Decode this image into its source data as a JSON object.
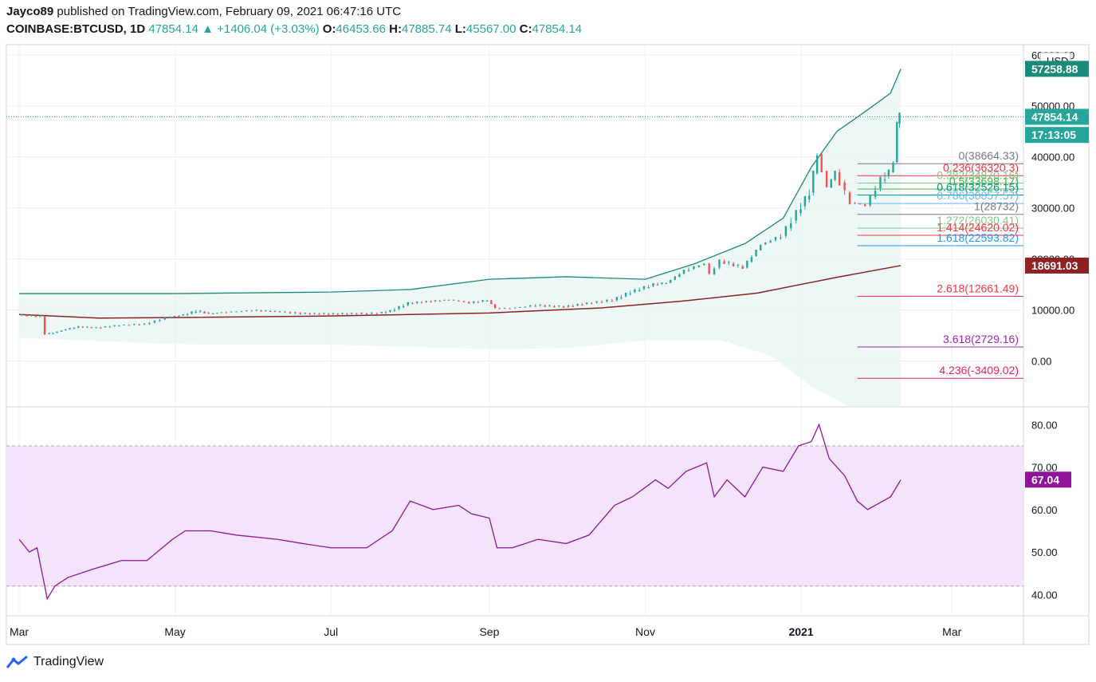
{
  "header": {
    "author": "Jayco89",
    "published_text": "published on TradingView.com, February 09, 2021 06:47:16 UTC",
    "symbol": "COINBASE:BTCUSD, 1D",
    "last": "47854.14",
    "change": "+1406.04 (+3.03%)",
    "o_label": "O:",
    "o_value": "46453.66",
    "h_label": "H:",
    "h_value": "47885.74",
    "l_label": "L:",
    "l_value": "45567.00",
    "c_label": "C:",
    "c_value": "47854.14"
  },
  "brand": {
    "name": "TradingView"
  },
  "colors": {
    "up": "#26a69a",
    "down": "#ef5350",
    "band": "#1b8a79",
    "ma": "#8b2323",
    "rsi": "#8e1599",
    "rsi_bg": "#f3e3fb",
    "grid": "#eef0f3"
  },
  "chart_data": [
    {
      "type": "candlestick",
      "currency_label": "USD",
      "x_labels": [
        "Mar",
        "May",
        "Jul",
        "Sep",
        "Nov",
        "2021",
        "Mar"
      ],
      "y_ticks": [
        "0.00",
        "10000.00",
        "20000.00",
        "30000.00",
        "40000.00",
        "50000.00",
        "60000.00"
      ],
      "ylim": [
        -9000,
        62000
      ],
      "price_series": [
        [
          "2020-03-01",
          9000
        ],
        [
          "2020-03-05",
          8900
        ],
        [
          "2020-03-10",
          8700
        ],
        [
          "2020-03-12",
          5300
        ],
        [
          "2020-03-15",
          5500
        ],
        [
          "2020-03-20",
          6200
        ],
        [
          "2020-03-25",
          6700
        ],
        [
          "2020-04-01",
          6500
        ],
        [
          "2020-04-10",
          7000
        ],
        [
          "2020-04-20",
          7200
        ],
        [
          "2020-04-30",
          8700
        ],
        [
          "2020-05-05",
          9000
        ],
        [
          "2020-05-10",
          9800
        ],
        [
          "2020-05-15",
          9300
        ],
        [
          "2020-05-20",
          9500
        ],
        [
          "2020-06-01",
          9900
        ],
        [
          "2020-06-10",
          9700
        ],
        [
          "2020-06-20",
          9300
        ],
        [
          "2020-07-01",
          9200
        ],
        [
          "2020-07-10",
          9250
        ],
        [
          "2020-07-20",
          9350
        ],
        [
          "2020-07-25",
          9800
        ],
        [
          "2020-08-01",
          11300
        ],
        [
          "2020-08-10",
          11700
        ],
        [
          "2020-08-17",
          12000
        ],
        [
          "2020-08-25",
          11400
        ],
        [
          "2020-09-01",
          11900
        ],
        [
          "2020-09-04",
          10300
        ],
        [
          "2020-09-10",
          10300
        ],
        [
          "2020-09-20",
          10900
        ],
        [
          "2020-10-01",
          10600
        ],
        [
          "2020-10-10",
          11300
        ],
        [
          "2020-10-20",
          11900
        ],
        [
          "2020-10-27",
          13500
        ],
        [
          "2020-11-05",
          15000
        ],
        [
          "2020-11-10",
          15300
        ],
        [
          "2020-11-17",
          17700
        ],
        [
          "2020-11-25",
          19100
        ],
        [
          "2020-11-27",
          17000
        ],
        [
          "2020-12-01",
          19600
        ],
        [
          "2020-12-10",
          18300
        ],
        [
          "2020-12-17",
          22800
        ],
        [
          "2020-12-25",
          24500
        ],
        [
          "2020-12-31",
          29000
        ],
        [
          "2021-01-05",
          33000
        ],
        [
          "2021-01-08",
          40500
        ],
        [
          "2021-01-12",
          34000
        ],
        [
          "2021-01-15",
          37000
        ],
        [
          "2021-01-21",
          31000
        ],
        [
          "2021-01-27",
          30500
        ],
        [
          "2021-02-02",
          35500
        ],
        [
          "2021-02-05",
          37000
        ],
        [
          "2021-02-07",
          39000
        ],
        [
          "2021-02-08",
          46500
        ],
        [
          "2021-02-09",
          47854
        ]
      ],
      "upper_band": [
        [
          "2020-03-01",
          13200
        ],
        [
          "2020-05-01",
          13200
        ],
        [
          "2020-07-01",
          13500
        ],
        [
          "2020-08-01",
          14000
        ],
        [
          "2020-09-01",
          16000
        ],
        [
          "2020-10-01",
          16500
        ],
        [
          "2020-11-01",
          16000
        ],
        [
          "2020-11-20",
          19000
        ],
        [
          "2020-12-10",
          23000
        ],
        [
          "2020-12-25",
          28000
        ],
        [
          "2021-01-05",
          38000
        ],
        [
          "2021-01-15",
          45000
        ],
        [
          "2021-01-25",
          48500
        ],
        [
          "2021-02-05",
          52500
        ],
        [
          "2021-02-09",
          57258
        ]
      ],
      "lower_band": [
        [
          "2020-03-01",
          4500
        ],
        [
          "2020-05-01",
          3300
        ],
        [
          "2020-07-01",
          3200
        ],
        [
          "2020-09-01",
          2300
        ],
        [
          "2020-10-01",
          2500
        ],
        [
          "2020-11-01",
          4000
        ],
        [
          "2020-12-01",
          4000
        ],
        [
          "2020-12-20",
          1000
        ],
        [
          "2021-01-05",
          -5000
        ],
        [
          "2021-01-20",
          -9000
        ],
        [
          "2021-02-09",
          -9000
        ]
      ],
      "moving_average": [
        [
          "2020-03-01",
          9100
        ],
        [
          "2020-04-01",
          8400
        ],
        [
          "2020-05-01",
          8500
        ],
        [
          "2020-07-01",
          8800
        ],
        [
          "2020-09-01",
          9400
        ],
        [
          "2020-10-15",
          10400
        ],
        [
          "2020-11-15",
          11700
        ],
        [
          "2020-12-15",
          13300
        ],
        [
          "2021-01-15",
          16400
        ],
        [
          "2021-02-09",
          18691
        ]
      ],
      "price_labels": [
        {
          "text": "57258.88",
          "color": "#1b8a79",
          "value": 57258.88
        },
        {
          "text": "47854.14",
          "color": "#26a69a",
          "value": 47854.14
        },
        {
          "text": "17:13:05",
          "color": "#26a69a",
          "value": 44300
        },
        {
          "text": "18691.03",
          "color": "#8b2323",
          "value": 18691.03
        }
      ],
      "fibonacci": [
        {
          "text": "0(38664.33)",
          "value": 38664.33,
          "color": "#787b86"
        },
        {
          "text": "0.236(36320.3)",
          "value": 36320.3,
          "color": "#f23645"
        },
        {
          "text": "0.382(34870.16)",
          "value": 34870.16,
          "color": "#81c784"
        },
        {
          "text": "0.5(33698.17)",
          "value": 33698.17,
          "color": "#4caf50"
        },
        {
          "text": "0.618(32526.15)",
          "value": 32526.15,
          "color": "#089981"
        },
        {
          "text": "0.786(30857.57)",
          "value": 30857.57,
          "color": "#64b5f6"
        },
        {
          "text": "1(28732)",
          "value": 28732,
          "color": "#787b86"
        },
        {
          "text": "1.272(26030.41)",
          "value": 26030.41,
          "color": "#81c784"
        },
        {
          "text": "1.414(24620.02)",
          "value": 24620.02,
          "color": "#f23645"
        },
        {
          "text": "1.618(22593.82)",
          "value": 22593.82,
          "color": "#2196f3"
        },
        {
          "text": "2.618(12661.49)",
          "value": 12661.49,
          "color": "#f23645"
        },
        {
          "text": "3.618(2729.16)",
          "value": 2729.16,
          "color": "#9c27b0"
        },
        {
          "text": "4.236(-3409.02)",
          "value": -3409.02,
          "color": "#e91e63"
        }
      ]
    },
    {
      "type": "line",
      "y_ticks": [
        "40.00",
        "50.00",
        "60.00",
        "70.00",
        "80.00"
      ],
      "ylim": [
        35,
        84
      ],
      "bands": [
        42,
        75
      ],
      "last_label": "67.04",
      "series": [
        [
          "2020-03-01",
          53
        ],
        [
          "2020-03-05",
          50
        ],
        [
          "2020-03-08",
          51
        ],
        [
          "2020-03-12",
          39
        ],
        [
          "2020-03-15",
          42
        ],
        [
          "2020-03-20",
          44
        ],
        [
          "2020-03-30",
          46
        ],
        [
          "2020-04-10",
          48
        ],
        [
          "2020-04-20",
          48
        ],
        [
          "2020-04-30",
          53
        ],
        [
          "2020-05-05",
          55
        ],
        [
          "2020-05-15",
          55
        ],
        [
          "2020-05-25",
          54
        ],
        [
          "2020-06-10",
          53
        ],
        [
          "2020-06-20",
          52
        ],
        [
          "2020-07-01",
          51
        ],
        [
          "2020-07-15",
          51
        ],
        [
          "2020-07-25",
          55
        ],
        [
          "2020-08-01",
          62
        ],
        [
          "2020-08-10",
          60
        ],
        [
          "2020-08-20",
          61
        ],
        [
          "2020-08-25",
          59
        ],
        [
          "2020-09-01",
          58
        ],
        [
          "2020-09-04",
          51
        ],
        [
          "2020-09-10",
          51
        ],
        [
          "2020-09-20",
          53
        ],
        [
          "2020-10-01",
          52
        ],
        [
          "2020-10-10",
          54
        ],
        [
          "2020-10-20",
          61
        ],
        [
          "2020-10-27",
          63
        ],
        [
          "2020-11-05",
          67
        ],
        [
          "2020-11-10",
          65
        ],
        [
          "2020-11-17",
          69
        ],
        [
          "2020-11-25",
          71
        ],
        [
          "2020-11-28",
          63
        ],
        [
          "2020-12-03",
          67
        ],
        [
          "2020-12-10",
          63
        ],
        [
          "2020-12-17",
          70
        ],
        [
          "2020-12-25",
          69
        ],
        [
          "2020-12-31",
          75
        ],
        [
          "2021-01-05",
          76
        ],
        [
          "2021-01-08",
          80
        ],
        [
          "2021-01-12",
          72
        ],
        [
          "2021-01-18",
          68
        ],
        [
          "2021-01-23",
          62
        ],
        [
          "2021-01-27",
          60
        ],
        [
          "2021-02-02",
          62
        ],
        [
          "2021-02-05",
          63
        ],
        [
          "2021-02-08",
          66
        ],
        [
          "2021-02-09",
          67
        ]
      ]
    }
  ]
}
